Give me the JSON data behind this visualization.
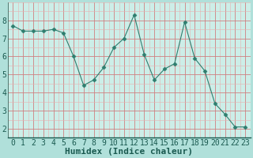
{
  "x": [
    0,
    1,
    2,
    3,
    4,
    5,
    6,
    7,
    8,
    9,
    10,
    11,
    12,
    13,
    14,
    15,
    16,
    17,
    18,
    19,
    20,
    21,
    22,
    23
  ],
  "y": [
    7.7,
    7.4,
    7.4,
    7.4,
    7.5,
    7.3,
    6.0,
    4.4,
    4.7,
    5.4,
    6.5,
    7.0,
    8.3,
    6.1,
    4.7,
    5.3,
    5.6,
    7.9,
    5.9,
    5.2,
    3.4,
    2.8,
    2.1,
    2.1
  ],
  "xlabel": "Humidex (Indice chaleur)",
  "xlim": [
    -0.5,
    23.5
  ],
  "ylim": [
    1.5,
    9.0
  ],
  "yticks": [
    2,
    3,
    4,
    5,
    6,
    7,
    8
  ],
  "xticks": [
    0,
    1,
    2,
    3,
    4,
    5,
    6,
    7,
    8,
    9,
    10,
    11,
    12,
    13,
    14,
    15,
    16,
    17,
    18,
    19,
    20,
    21,
    22,
    23
  ],
  "line_color": "#2e7d6e",
  "marker": "D",
  "marker_size": 2.5,
  "bg_color": "#b0e0da",
  "plot_bg_color": "#cceee8",
  "minor_grid_color": "#e8b0b0",
  "major_grid_color": "#d08080",
  "xlabel_fontsize": 8,
  "tick_fontsize": 7,
  "bottom_bar_color": "#2e7d6e"
}
